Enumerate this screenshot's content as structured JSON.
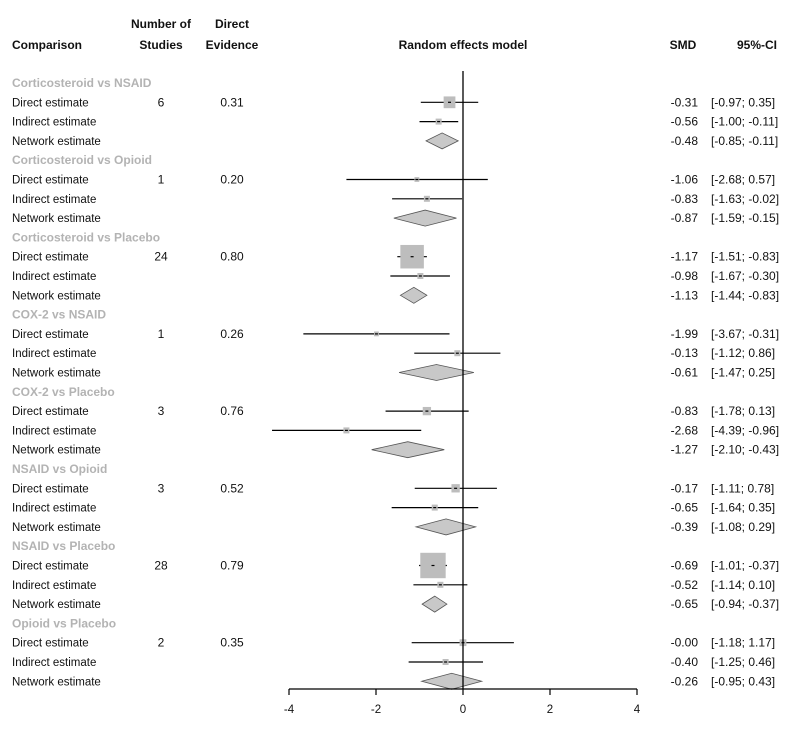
{
  "chart_data": {
    "type": "forest",
    "title": "Random effects model",
    "headers": {
      "comparison": "Comparison",
      "studies_l1": "Number of",
      "studies_l2": "Studies",
      "evidence_l1": "Direct",
      "evidence_l2": "Evidence",
      "model": "Random effects model",
      "smd": "SMD",
      "ci": "95%-CI"
    },
    "xlim": [
      -4,
      4
    ],
    "x_ticks": [
      -4,
      -2,
      0,
      2,
      4
    ],
    "x_tick_labels": [
      "-4",
      "-2",
      "0",
      "2",
      "4"
    ],
    "groups": [
      {
        "name": "Corticosteroid vs NSAID",
        "studies": "6",
        "direct_evidence": "0.31",
        "rows": [
          {
            "label": "Direct estimate",
            "smd": -0.31,
            "lower": -0.97,
            "upper": 0.35,
            "smd_text": "-0.31",
            "ci_text": "[-0.97; 0.35]"
          },
          {
            "label": "Indirect estimate",
            "smd": -0.56,
            "lower": -1.0,
            "upper": -0.11,
            "smd_text": "-0.56",
            "ci_text": "[-1.00; -0.11]"
          },
          {
            "label": "Network estimate",
            "smd": -0.48,
            "lower": -0.85,
            "upper": -0.11,
            "smd_text": "-0.48",
            "ci_text": "[-0.85; -0.11]"
          }
        ]
      },
      {
        "name": "Corticosteroid vs Opioid",
        "studies": "1",
        "direct_evidence": "0.20",
        "rows": [
          {
            "label": "Direct estimate",
            "smd": -1.06,
            "lower": -2.68,
            "upper": 0.57,
            "smd_text": "-1.06",
            "ci_text": "[-2.68; 0.57]"
          },
          {
            "label": "Indirect estimate",
            "smd": -0.83,
            "lower": -1.63,
            "upper": -0.02,
            "smd_text": "-0.83",
            "ci_text": "[-1.63; -0.02]"
          },
          {
            "label": "Network estimate",
            "smd": -0.87,
            "lower": -1.59,
            "upper": -0.15,
            "smd_text": "-0.87",
            "ci_text": "[-1.59; -0.15]"
          }
        ]
      },
      {
        "name": "Corticosteroid vs Placebo",
        "studies": "24",
        "direct_evidence": "0.80",
        "rows": [
          {
            "label": "Direct estimate",
            "smd": -1.17,
            "lower": -1.51,
            "upper": -0.83,
            "smd_text": "-1.17",
            "ci_text": "[-1.51; -0.83]"
          },
          {
            "label": "Indirect estimate",
            "smd": -0.98,
            "lower": -1.67,
            "upper": -0.3,
            "smd_text": "-0.98",
            "ci_text": "[-1.67; -0.30]"
          },
          {
            "label": "Network estimate",
            "smd": -1.13,
            "lower": -1.44,
            "upper": -0.83,
            "smd_text": "-1.13",
            "ci_text": "[-1.44; -0.83]"
          }
        ]
      },
      {
        "name": "COX-2 vs NSAID",
        "studies": "1",
        "direct_evidence": "0.26",
        "rows": [
          {
            "label": "Direct estimate",
            "smd": -1.99,
            "lower": -3.67,
            "upper": -0.31,
            "smd_text": "-1.99",
            "ci_text": "[-3.67; -0.31]"
          },
          {
            "label": "Indirect estimate",
            "smd": -0.13,
            "lower": -1.12,
            "upper": 0.86,
            "smd_text": "-0.13",
            "ci_text": "[-1.12; 0.86]"
          },
          {
            "label": "Network estimate",
            "smd": -0.61,
            "lower": -1.47,
            "upper": 0.25,
            "smd_text": "-0.61",
            "ci_text": "[-1.47; 0.25]"
          }
        ]
      },
      {
        "name": "COX-2 vs Placebo",
        "studies": "3",
        "direct_evidence": "0.76",
        "rows": [
          {
            "label": "Direct estimate",
            "smd": -0.83,
            "lower": -1.78,
            "upper": 0.13,
            "smd_text": "-0.83",
            "ci_text": "[-1.78; 0.13]"
          },
          {
            "label": "Indirect estimate",
            "smd": -2.68,
            "lower": -4.39,
            "upper": -0.96,
            "smd_text": "-2.68",
            "ci_text": "[-4.39; -0.96]"
          },
          {
            "label": "Network estimate",
            "smd": -1.27,
            "lower": -2.1,
            "upper": -0.43,
            "smd_text": "-1.27",
            "ci_text": "[-2.10; -0.43]"
          }
        ]
      },
      {
        "name": "NSAID vs Opioid",
        "studies": "3",
        "direct_evidence": "0.52",
        "rows": [
          {
            "label": "Direct estimate",
            "smd": -0.17,
            "lower": -1.11,
            "upper": 0.78,
            "smd_text": "-0.17",
            "ci_text": "[-1.11; 0.78]"
          },
          {
            "label": "Indirect estimate",
            "smd": -0.65,
            "lower": -1.64,
            "upper": 0.35,
            "smd_text": "-0.65",
            "ci_text": "[-1.64; 0.35]"
          },
          {
            "label": "Network estimate",
            "smd": -0.39,
            "lower": -1.08,
            "upper": 0.29,
            "smd_text": "-0.39",
            "ci_text": "[-1.08; 0.29]"
          }
        ]
      },
      {
        "name": "NSAID vs Placebo",
        "studies": "28",
        "direct_evidence": "0.79",
        "rows": [
          {
            "label": "Direct estimate",
            "smd": -0.69,
            "lower": -1.01,
            "upper": -0.37,
            "smd_text": "-0.69",
            "ci_text": "[-1.01; -0.37]"
          },
          {
            "label": "Indirect estimate",
            "smd": -0.52,
            "lower": -1.14,
            "upper": 0.1,
            "smd_text": "-0.52",
            "ci_text": "[-1.14; 0.10]"
          },
          {
            "label": "Network estimate",
            "smd": -0.65,
            "lower": -0.94,
            "upper": -0.37,
            "smd_text": "-0.65",
            "ci_text": "[-0.94; -0.37]"
          }
        ]
      },
      {
        "name": "Opioid vs Placebo",
        "studies": "2",
        "direct_evidence": "0.35",
        "rows": [
          {
            "label": "Direct estimate",
            "smd": 0.0,
            "lower": -1.18,
            "upper": 1.17,
            "smd_text": "-0.00",
            "ci_text": "[-1.18; 1.17]"
          },
          {
            "label": "Indirect estimate",
            "smd": -0.4,
            "lower": -1.25,
            "upper": 0.46,
            "smd_text": "-0.40",
            "ci_text": "[-1.25; 0.46]"
          },
          {
            "label": "Network estimate",
            "smd": -0.26,
            "lower": -0.95,
            "upper": 0.43,
            "smd_text": "-0.26",
            "ci_text": "[-0.95; 0.43]"
          }
        ]
      }
    ],
    "colors": {
      "group_label": "#b3b3b3",
      "square": "#bdbdbd",
      "diamond": "#c8c8c8",
      "line": "#000000"
    }
  }
}
